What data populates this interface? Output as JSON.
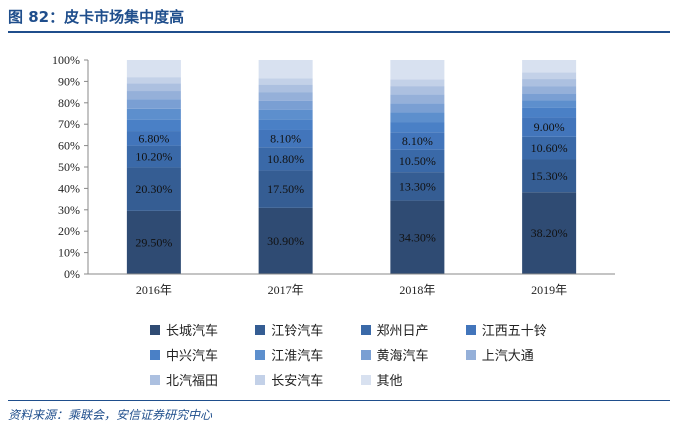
{
  "title": "图 82：皮卡市场集中度高",
  "source": "资料来源：乘联会，安信证券研究中心",
  "chart_data": {
    "type": "bar",
    "stacked": true,
    "categories": [
      "2016年",
      "2017年",
      "2018年",
      "2019年"
    ],
    "ylim": [
      0,
      100
    ],
    "y_ticks": [
      "0%",
      "10%",
      "20%",
      "30%",
      "40%",
      "50%",
      "60%",
      "70%",
      "80%",
      "90%",
      "100%"
    ],
    "legend_position": "bottom",
    "grid": false,
    "series": [
      {
        "name": "长城汽车",
        "color": "#2f4b73",
        "values": [
          29.5,
          30.9,
          34.3,
          38.2
        ],
        "labels": [
          "29.50%",
          "30.90%",
          "34.30%",
          "38.20%"
        ]
      },
      {
        "name": "江铃汽车",
        "color": "#355d93",
        "values": [
          20.3,
          17.5,
          13.3,
          15.3
        ],
        "labels": [
          "20.30%",
          "17.50%",
          "13.30%",
          "15.30%"
        ]
      },
      {
        "name": "郑州日产",
        "color": "#3a69a8",
        "values": [
          10.2,
          10.8,
          10.5,
          10.6
        ],
        "labels": [
          "10.20%",
          "10.80%",
          "10.50%",
          "10.60%"
        ]
      },
      {
        "name": "江西五十铃",
        "color": "#4275bb",
        "values": [
          6.8,
          8.1,
          8.1,
          9.0
        ],
        "labels": [
          "6.80%",
          "8.10%",
          "8.10%",
          "9.00%"
        ]
      },
      {
        "name": "中兴汽车",
        "color": "#4a80c6",
        "values": [
          5.2,
          5.0,
          4.8,
          4.5
        ]
      },
      {
        "name": "江淮汽车",
        "color": "#5d8fcd",
        "values": [
          5.2,
          4.5,
          4.5,
          3.5
        ]
      },
      {
        "name": "黄海汽车",
        "color": "#7a9fd3",
        "values": [
          4.5,
          4.2,
          4.3,
          3.2
        ]
      },
      {
        "name": "上汽大通",
        "color": "#95b0d9",
        "values": [
          3.8,
          4.0,
          4.2,
          3.5
        ]
      },
      {
        "name": "北汽福田",
        "color": "#acc0e0",
        "values": [
          3.5,
          3.5,
          3.8,
          3.3
        ]
      },
      {
        "name": "长安汽车",
        "color": "#c3d1e8",
        "values": [
          3.0,
          3.0,
          3.2,
          3.1
        ]
      },
      {
        "name": "其他",
        "color": "#d8e1f0",
        "values": [
          8.0,
          8.5,
          9.0,
          5.8
        ]
      }
    ]
  }
}
